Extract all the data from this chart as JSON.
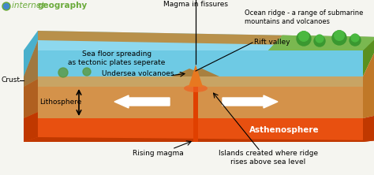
{
  "bg_color": "#f5f5f0",
  "water_color": "#6ecae4",
  "water_top_color": "#8dd8ee",
  "seafloor_color": "#c8a464",
  "seafloor_dark": "#b8904a",
  "litho_color": "#d4924a",
  "litho_dark": "#c07828",
  "astheno_color": "#e85010",
  "astheno_dark": "#c03800",
  "land_color": "#7ab850",
  "land_dark": "#5a9830",
  "left_face_water": "#4ab0cc",
  "left_face_seafloor": "#a07840",
  "left_face_litho": "#b06020",
  "left_face_astheno": "#c03800",
  "volcano_orange": "#e87820",
  "volcano_light": "#f0a040",
  "ridge_color": "#b89060",
  "logo_color": "#6aaa3a",
  "labels": {
    "magma_in_fissures": "Magma in fissures",
    "ocean_ridge": "Ocean ridge - a range of submarine\nmountains and volcanoes",
    "rift_valley": "Rift valley",
    "sea_floor_spreading": "Sea floor spreading\nas tectonic plates seperate",
    "undersea_volcanoes": "Undersea volcanoes",
    "crust": "Crust",
    "lithosphere": "Lithosphere",
    "asthenosphere": "Asthenosphere",
    "rising_magma": "Rising magma",
    "islands_created": "Islands created where ridge\nrises above sea level",
    "logo_internet": "internet ",
    "logo_geography": "geography"
  },
  "font_size": 6.5
}
